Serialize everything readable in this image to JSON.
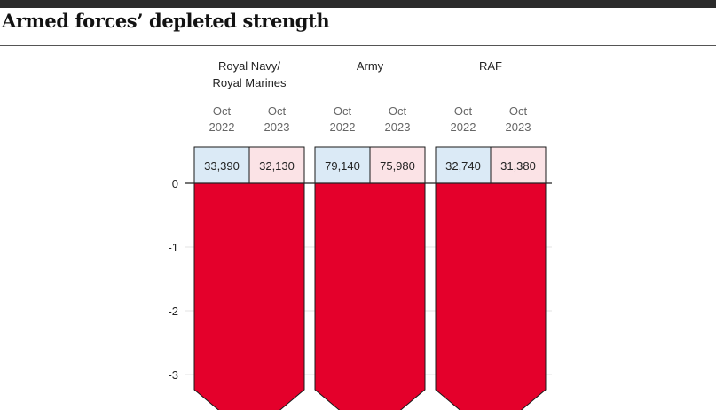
{
  "header": {
    "title": "Armed forces’ depleted strength"
  },
  "colors": {
    "bar_fill": "#e4002b",
    "cell_2022": "#dbeaf6",
    "cell_2023": "#fbe3e6",
    "axis": "#222222",
    "text": "#222222",
    "period_text": "#666666",
    "grid": "#e3e3e3"
  },
  "chart_data": {
    "type": "bar",
    "title": "",
    "xlabel": "",
    "ylabel": "",
    "ylim": [
      -3.5,
      0
    ],
    "yticks": [
      0,
      -1,
      -2,
      -3
    ],
    "grid": "horizontal",
    "groups": [
      {
        "label_lines": [
          "Royal Navy/",
          "Royal Marines"
        ],
        "periods": [
          {
            "month": "Oct",
            "year": "2022",
            "value": "33,390"
          },
          {
            "month": "Oct",
            "year": "2023",
            "value": "32,130"
          }
        ]
      },
      {
        "label_lines": [
          "Army"
        ],
        "periods": [
          {
            "month": "Oct",
            "year": "2022",
            "value": "79,140"
          },
          {
            "month": "Oct",
            "year": "2023",
            "value": "75,980"
          }
        ]
      },
      {
        "label_lines": [
          "RAF"
        ],
        "periods": [
          {
            "month": "Oct",
            "year": "2022",
            "value": "32,740"
          },
          {
            "month": "Oct",
            "year": "2023",
            "value": "31,380"
          }
        ]
      }
    ]
  }
}
